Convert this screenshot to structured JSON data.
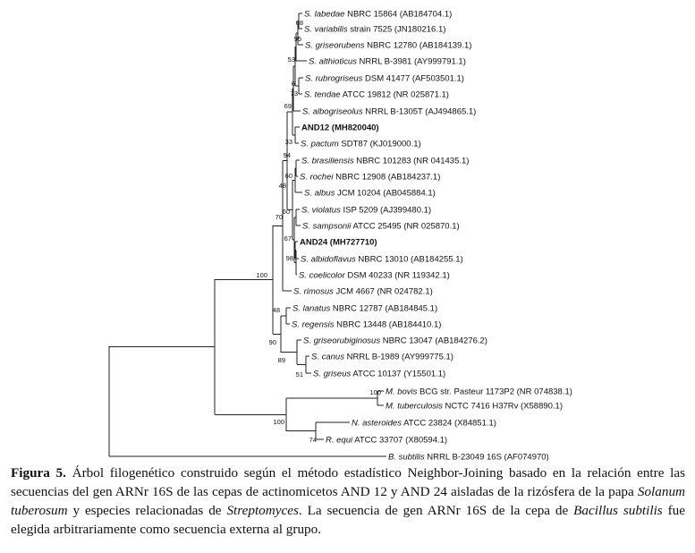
{
  "tree": {
    "taxa": [
      {
        "id": "labedae",
        "italic": "S. labedae",
        "rest": " NBRC 15864 (AB184704.1)"
      },
      {
        "id": "variabilis",
        "italic": "S. variabilis",
        "rest": " strain 7525 (JN180216.1)"
      },
      {
        "id": "griseorubens",
        "italic": "S. griseorubens",
        "rest": " NBRC 12780 (AB184139.1)"
      },
      {
        "id": "althioticus",
        "italic": "S. althioticus",
        "rest": " NRRL B-3981 (AY999791.1)"
      },
      {
        "id": "rubrogriseus",
        "italic": "S. rubrogriseus",
        "rest": " DSM 41477 (AF503501.1)"
      },
      {
        "id": "tendae",
        "italic": "S. tendae",
        "rest": " ATCC 19812 (NR 025871.1)"
      },
      {
        "id": "albogriseolus",
        "italic": "S. albogriseolus",
        "rest": " NRRL B-1305T (AJ494865.1)"
      },
      {
        "id": "and12",
        "italic": "",
        "rest": "AND12 (MH820040)",
        "bold": true
      },
      {
        "id": "pactum",
        "italic": "S. pactum",
        "rest": " SDT87 (KJ019000.1)"
      },
      {
        "id": "brasiliensis",
        "italic": "S. brasiliensis",
        "rest": " NBRC 101283 (NR 041435.1)"
      },
      {
        "id": "rochei",
        "italic": "S. rochei",
        "rest": " NBRC 12908 (AB184237.1)"
      },
      {
        "id": "albus",
        "italic": "S. albus",
        "rest": " JCM 10204 (AB045884.1)"
      },
      {
        "id": "violatus",
        "italic": "S. violatus",
        "rest": " ISP 5209 (AJ399480.1)"
      },
      {
        "id": "sampsonii",
        "italic": "S. sampsonii",
        "rest": " ATCC 25495 (NR 025870.1)"
      },
      {
        "id": "and24",
        "italic": "",
        "rest": "AND24 (MH727710)",
        "bold": true
      },
      {
        "id": "albidoflavus",
        "italic": "S. albidoflavus",
        "rest": " NBRC 13010 (AB184255.1)"
      },
      {
        "id": "coelicolor",
        "italic": "S. coelicolor",
        "rest": " DSM 40233 (NR 119342.1)"
      },
      {
        "id": "rimosus",
        "italic": "S. rimosus",
        "rest": " JCM 4667 (NR 024782.1)"
      },
      {
        "id": "lanatus",
        "italic": "S. lanatus",
        "rest": " NBRC 12787 (AB184845.1)"
      },
      {
        "id": "regensis",
        "italic": "S. regensis",
        "rest": " NBRC 13448 (AB184410.1)"
      },
      {
        "id": "griseorubiginosus",
        "italic": "S. griseorubiginosus",
        "rest": " NBRC 13047 (AB184276.2)"
      },
      {
        "id": "canus",
        "italic": "S. canus",
        "rest": " NRRL B-1989 (AY999775.1)"
      },
      {
        "id": "griseus",
        "italic": "S. griseus",
        "rest": " ATCC 10137 (Y15501.1)"
      },
      {
        "id": "bovis",
        "italic": "M. bovis",
        "rest": " BCG str. Pasteur 1173P2 (NR 074838.1)"
      },
      {
        "id": "tuberculosis",
        "italic": "M. tuberculosis",
        "rest": " NCTC 7416 H37Rv (X58890.1)"
      },
      {
        "id": "asteroides",
        "italic": "N. asteroides",
        "rest": " ATCC 23824 (X84851.1)"
      },
      {
        "id": "equi",
        "italic": "R. equi",
        "rest": " ATCC 33707 (X80594.1)"
      },
      {
        "id": "subtilis",
        "italic": "B. subtilis",
        "rest": " NRRL B-23049 16S (AF074970)"
      }
    ],
    "bootstrap": [
      "68",
      "95",
      "53",
      "6",
      "73",
      "69",
      "33",
      "94",
      "48",
      "60",
      "60",
      "67",
      "98",
      "70",
      "100",
      "48",
      "90",
      "89",
      "51",
      "100",
      "100",
      "74"
    ]
  },
  "caption": {
    "label": "Figura 5.",
    "parts": [
      {
        "t": " Árbol filogenético construido según el método estadístico Neighbor-Joining basado en la relación entre las secuencias del gen ARNr 16S de las cepas de actinomicetos AND 12 y AND 24 aisladas de la rizósfera de la papa ",
        "i": false
      },
      {
        "t": "Solanum tuberosum",
        "i": true
      },
      {
        "t": " y especies relacionadas de ",
        "i": false
      },
      {
        "t": "Streptomyces",
        "i": true
      },
      {
        "t": ". La secuencia de gen ARNr 16S de la cepa de ",
        "i": false
      },
      {
        "t": "Bacillus subtilis",
        "i": true
      },
      {
        "t": " fue elegida arbitrariamente como secuencia externa al grupo.",
        "i": false
      }
    ]
  }
}
